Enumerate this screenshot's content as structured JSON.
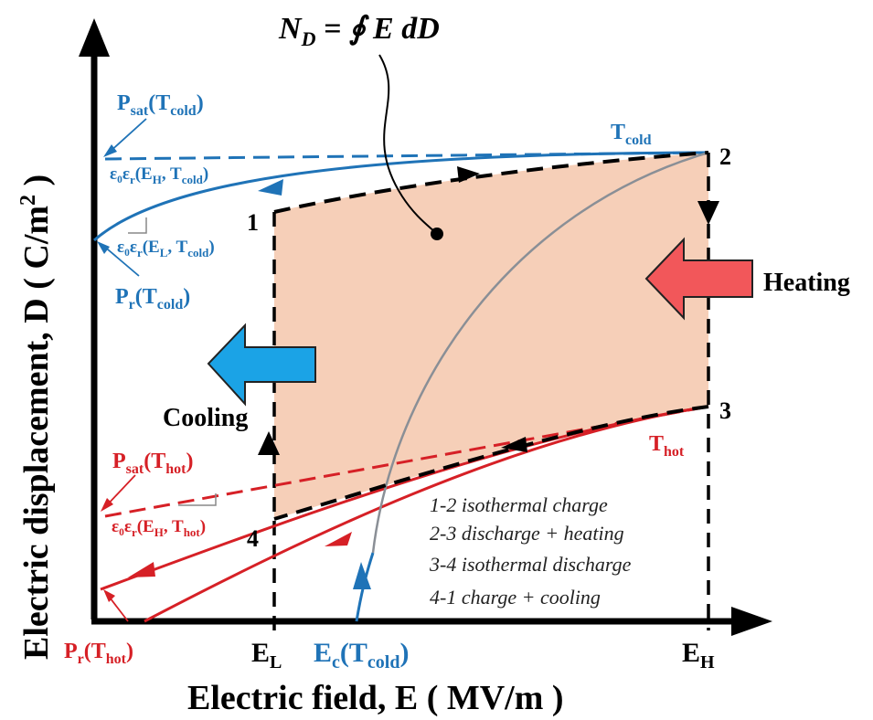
{
  "axes": {
    "x_label": "Electric field, E ( MV/m )",
    "y_label": "Electric displacement, D ( C/m",
    "y_label_sup": "2",
    "y_label_close": " )",
    "ticks": {
      "EL": {
        "main": "E",
        "sub": "L"
      },
      "EH": {
        "main": "E",
        "sub": "H"
      },
      "Ec": {
        "main": "E",
        "sub": "c",
        "paren": "(T",
        "psub": "cold",
        "close": ")"
      }
    }
  },
  "equation": {
    "N": "N",
    "N_sub": "D",
    "rest": " = ∮ E dD"
  },
  "curves": {
    "t_cold": {
      "main": "T",
      "sub": "cold"
    },
    "t_hot": {
      "main": "T",
      "sub": "hot"
    }
  },
  "annotations": {
    "psat_cold": {
      "main": "P",
      "sub1": "sat",
      "mid": "(T",
      "sub2": "cold",
      "close": ")"
    },
    "eps_h_cold": {
      "text": "ε₀ε",
      "r": "r",
      "open": "(E",
      "sub1": "H",
      "comma": ", T",
      "sub2": "cold",
      "close": ")"
    },
    "eps_l_cold": {
      "text": "ε₀ε",
      "r": "r",
      "open": "(E",
      "sub1": "L",
      "comma": ", T",
      "sub2": "cold",
      "close": ")"
    },
    "pr_cold": {
      "main": "P",
      "sub1": "r",
      "mid": "(T",
      "sub2": "cold",
      "close": ")"
    },
    "psat_hot": {
      "main": "P",
      "sub1": "sat",
      "mid": "(T",
      "sub2": "hot",
      "close": ")"
    },
    "eps_h_hot": {
      "text": "ε₀ε",
      "r": "r",
      "open": "(E",
      "sub1": "H",
      "comma": ", T",
      "sub2": "hot",
      "close": ")"
    },
    "pr_hot": {
      "main": "P",
      "sub1": "r",
      "mid": "(T",
      "sub2": "hot",
      "close": ")"
    }
  },
  "points": [
    "1",
    "2",
    "3",
    "4"
  ],
  "labels": {
    "heating": "Heating",
    "cooling": "Cooling"
  },
  "legend": [
    "1-2 isothermal charge",
    "2-3 discharge + heating",
    "3-4 isothermal discharge",
    "4-1 charge + cooling"
  ],
  "colors": {
    "cold": "#1f73b7",
    "hot": "#d62026",
    "fill": "#f6cfb8",
    "heat_arrow": "#f2575a",
    "cool_arrow": "#1ba3e6",
    "coercive": "#8a8f96"
  }
}
